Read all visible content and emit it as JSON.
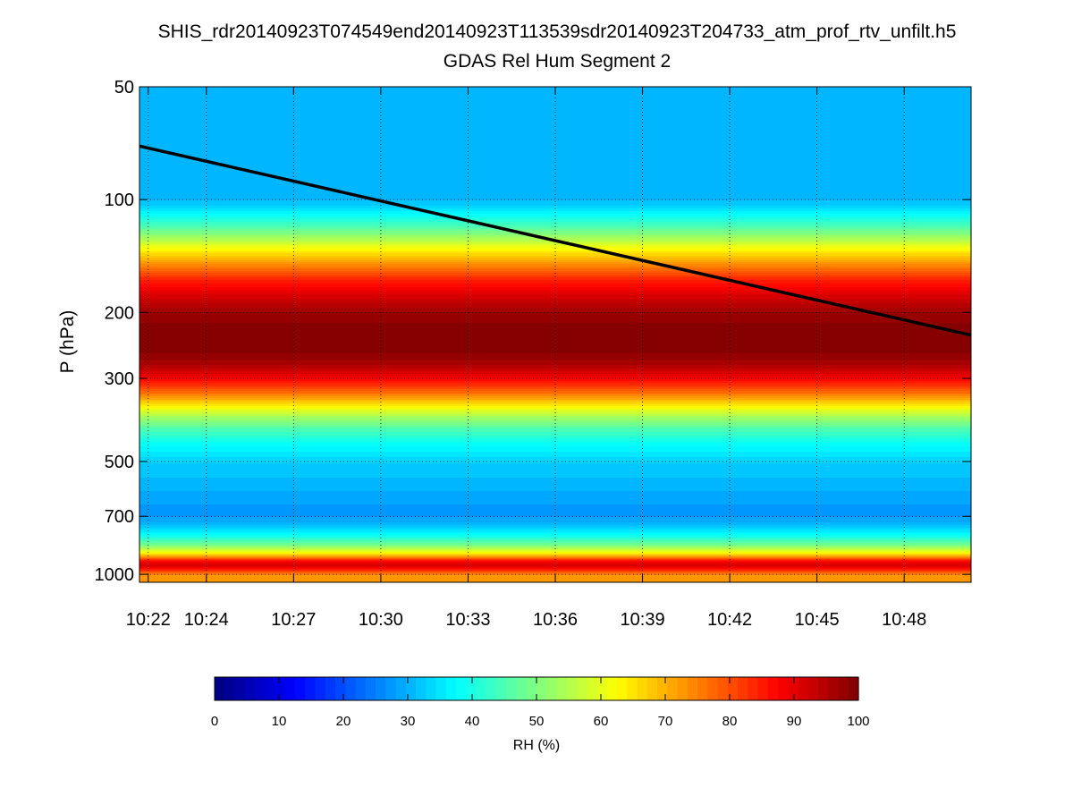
{
  "chart_data": {
    "type": "heatmap",
    "title": "SHIS_rdr20140923T074549end20140923T113539sdr20140923T204733_atm_prof_rtv_unfilt.h5",
    "subtitle": "GDAS Rel Hum Segment 2",
    "xlabel": "",
    "ylabel": "P (hPa)",
    "x_ticks": [
      "10:22",
      "10:24",
      "10:27",
      "10:30",
      "10:33",
      "10:36",
      "10:39",
      "10:42",
      "10:45",
      "10:48"
    ],
    "x_range_minutes": [
      621.7,
      650.3
    ],
    "x_tick_minutes": [
      622,
      624,
      627,
      630,
      633,
      636,
      639,
      642,
      645,
      648
    ],
    "y_scale": "log",
    "y_reversed": true,
    "y_range": [
      50,
      1050
    ],
    "y_ticks": [
      50,
      100,
      200,
      300,
      500,
      700,
      1000
    ],
    "grid": true,
    "colormap": "jet",
    "colorbar": {
      "label": "RH (%)",
      "range": [
        0,
        100
      ],
      "ticks": [
        0,
        10,
        20,
        30,
        40,
        50,
        60,
        70,
        80,
        90,
        100
      ],
      "orientation": "horizontal",
      "position": "bottom"
    },
    "rh_profile": [
      {
        "p": 50,
        "rh": 30
      },
      {
        "p": 98,
        "rh": 30
      },
      {
        "p": 104,
        "rh": 33
      },
      {
        "p": 110,
        "rh": 38
      },
      {
        "p": 118,
        "rh": 45
      },
      {
        "p": 125,
        "rh": 52
      },
      {
        "p": 133,
        "rh": 60
      },
      {
        "p": 142,
        "rh": 68
      },
      {
        "p": 152,
        "rh": 76
      },
      {
        "p": 163,
        "rh": 84
      },
      {
        "p": 180,
        "rh": 91
      },
      {
        "p": 200,
        "rh": 97
      },
      {
        "p": 230,
        "rh": 100
      },
      {
        "p": 265,
        "rh": 98
      },
      {
        "p": 285,
        "rh": 93
      },
      {
        "p": 305,
        "rh": 86
      },
      {
        "p": 330,
        "rh": 76
      },
      {
        "p": 355,
        "rh": 64
      },
      {
        "p": 380,
        "rh": 54
      },
      {
        "p": 410,
        "rh": 45
      },
      {
        "p": 450,
        "rh": 38
      },
      {
        "p": 500,
        "rh": 33
      },
      {
        "p": 560,
        "rh": 31
      },
      {
        "p": 620,
        "rh": 29
      },
      {
        "p": 690,
        "rh": 27
      },
      {
        "p": 730,
        "rh": 30
      },
      {
        "p": 780,
        "rh": 37
      },
      {
        "p": 830,
        "rh": 48
      },
      {
        "p": 870,
        "rh": 60
      },
      {
        "p": 900,
        "rh": 74
      },
      {
        "p": 920,
        "rh": 86
      },
      {
        "p": 945,
        "rh": 92
      },
      {
        "p": 975,
        "rh": 83
      },
      {
        "p": 1010,
        "rh": 72
      },
      {
        "p": 1050,
        "rh": 72
      }
    ],
    "line_series": {
      "color": "#000000",
      "x": [
        621.7,
        650.3
      ],
      "y": [
        72,
        230
      ]
    }
  }
}
